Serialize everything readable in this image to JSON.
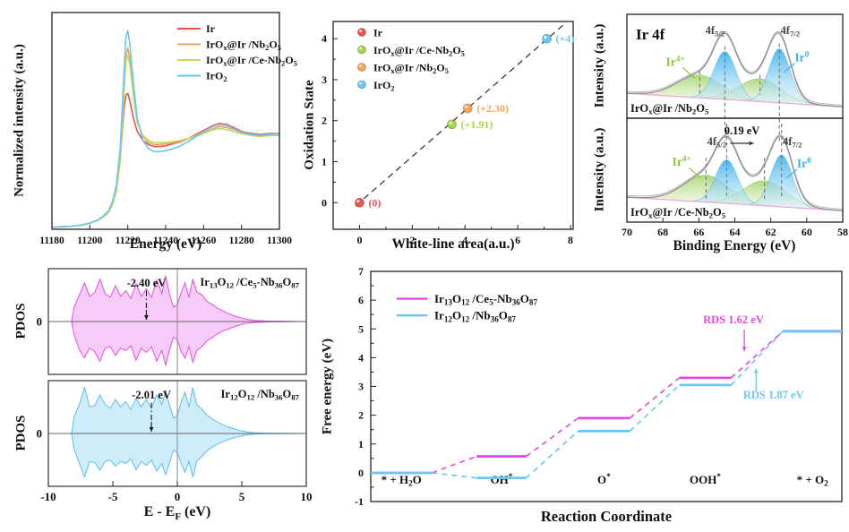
{
  "figure": {
    "background": "#ffffff",
    "text_color": "#111111"
  },
  "chart_data": [
    {
      "id": "xanes",
      "type": "line",
      "xlabel": "Energy (eV)",
      "ylabel": "Normalized intensity (a.u.)",
      "xlim": [
        11180,
        11300
      ],
      "ylim": [
        0,
        2.15
      ],
      "xticks": [
        11180,
        11200,
        11220,
        11240,
        11260,
        11280,
        11300
      ],
      "legend_position": "top-right-inside",
      "x": [
        11180,
        11185,
        11190,
        11195,
        11200,
        11204,
        11207,
        11210,
        11212,
        11214,
        11216,
        11218,
        11219,
        11220,
        11221,
        11223,
        11225,
        11228,
        11231,
        11234,
        11237,
        11240,
        11244,
        11248,
        11252,
        11256,
        11260,
        11264,
        11268,
        11272,
        11276,
        11280,
        11285,
        11290,
        11295,
        11300
      ],
      "series": [
        {
          "name": "Ir",
          "label": "Ir",
          "color": "#F0524E",
          "y": [
            0.02,
            0.025,
            0.03,
            0.04,
            0.06,
            0.09,
            0.12,
            0.18,
            0.26,
            0.4,
            0.7,
            1.2,
            1.33,
            1.35,
            1.28,
            1.1,
            0.97,
            0.88,
            0.84,
            0.82,
            0.82,
            0.83,
            0.85,
            0.87,
            0.9,
            0.94,
            0.98,
            1.02,
            1.05,
            1.04,
            1.01,
            0.97,
            0.95,
            0.94,
            0.95,
            0.95
          ]
        },
        {
          "name": "IrOx@Ir/Nb2O5",
          "label": "IrO<sub>x</sub>@Ir /Nb<sub>2</sub>O<sub>5</sub>",
          "color": "#F7A458",
          "y": [
            0.02,
            0.025,
            0.03,
            0.04,
            0.06,
            0.09,
            0.12,
            0.17,
            0.25,
            0.38,
            0.68,
            1.4,
            1.72,
            1.8,
            1.7,
            1.35,
            1.08,
            0.92,
            0.86,
            0.84,
            0.84,
            0.85,
            0.86,
            0.88,
            0.9,
            0.93,
            0.96,
            0.99,
            1.02,
            1.01,
            0.99,
            0.96,
            0.94,
            0.93,
            0.94,
            0.94
          ]
        },
        {
          "name": "IrOx@Ir/Ce-Nb2O5",
          "label": "IrO<sub>x</sub>@Ir /Ce-Nb<sub>2</sub>O<sub>5</sub>",
          "color": "#BCDB5F",
          "y": [
            0.02,
            0.025,
            0.03,
            0.04,
            0.06,
            0.09,
            0.12,
            0.17,
            0.25,
            0.38,
            0.66,
            1.35,
            1.66,
            1.73,
            1.64,
            1.32,
            1.06,
            0.93,
            0.88,
            0.86,
            0.86,
            0.86,
            0.87,
            0.88,
            0.9,
            0.92,
            0.95,
            0.98,
            1.0,
            0.99,
            0.97,
            0.95,
            0.93,
            0.92,
            0.93,
            0.93
          ]
        },
        {
          "name": "IrO2",
          "label": "IrO<sub>2</sub>",
          "color": "#6AC6F2",
          "y": [
            0.02,
            0.025,
            0.03,
            0.04,
            0.06,
            0.09,
            0.13,
            0.19,
            0.28,
            0.44,
            0.8,
            1.55,
            1.9,
            1.97,
            1.85,
            1.45,
            1.1,
            0.88,
            0.8,
            0.77,
            0.77,
            0.78,
            0.8,
            0.83,
            0.87,
            0.92,
            0.97,
            1.01,
            1.04,
            1.03,
            1.0,
            0.96,
            0.94,
            0.93,
            0.94,
            0.95
          ]
        }
      ]
    },
    {
      "id": "oxidation-state",
      "type": "scatter",
      "xlabel": "White-line area(a.u.)",
      "ylabel": "Oxidation State",
      "xlim": [
        -1.0,
        8.1
      ],
      "ylim": [
        -0.65,
        4.42
      ],
      "xticks": [
        0,
        2,
        4,
        6,
        8
      ],
      "yticks": [
        0,
        1,
        2,
        3,
        4
      ],
      "fit_line": {
        "x1": -0.15,
        "y1": -0.08,
        "x2": 7.75,
        "y2": 4.35,
        "style": "dashed",
        "color": "#3a3a3a"
      },
      "points": [
        {
          "label": "Ir",
          "x": 0,
          "y": 0,
          "annotation": "(0)",
          "color": "#F0524E"
        },
        {
          "label": "IrO<sub>x</sub>@Ir /Ce-Nb<sub>2</sub>O<sub>5</sub>",
          "x": 3.5,
          "y": 1.91,
          "annotation": "(+1.91)",
          "color": "#A5D74B"
        },
        {
          "label": "IrO<sub>x</sub>@Ir /Nb<sub>2</sub>O<sub>5</sub>",
          "x": 4.1,
          "y": 2.3,
          "annotation": "(+2.30)",
          "color": "#F7A458"
        },
        {
          "label": "IrO<sub>2</sub>",
          "x": 7.1,
          "y": 4.0,
          "annotation": "(+4)",
          "color": "#6AC6F2"
        }
      ]
    },
    {
      "id": "xps",
      "type": "area",
      "title": "Ir 4f",
      "xlabel": "Binding Energy (eV)",
      "ylabel": "Intensity (a.u.)",
      "xlim": [
        70,
        58
      ],
      "xticks": [
        70,
        68,
        66,
        64,
        62,
        60,
        58
      ],
      "colors": {
        "ir0_fill": "#45B5EE",
        "ir4_fill": "#9CCF5E",
        "envelope": "#8F8F8F",
        "baseline": "#F0A6DC",
        "ir0_text": "#3FB2EC",
        "ir4_text": "#8DC63F"
      },
      "panels": [
        {
          "sample": "IrO<sub>x</sub>@Ir /Nb<sub>2</sub>O<sub>5</sub>",
          "doublet_labels": [
            "4f<sub>5/2</sub>",
            "4f<sub>7/2</sub>"
          ],
          "ir0_label": "Ir<sup>0</sup>",
          "ir4_label": "Ir<sup>4+</sup>",
          "ir0_peaks": [
            {
              "center": 64.55,
              "sigma": 0.62,
              "amp": 0.46
            },
            {
              "center": 61.52,
              "sigma": 0.6,
              "amp": 0.52
            }
          ],
          "ir4_peaks": [
            {
              "center": 65.95,
              "sigma": 1.25,
              "amp": 0.22
            },
            {
              "center": 62.6,
              "sigma": 1.2,
              "amp": 0.22
            }
          ]
        },
        {
          "sample": "IrO<sub>x</sub>@Ir /Ce-Nb<sub>2</sub>O<sub>5</sub>",
          "doublet_labels": [
            "4f<sub>5/2</sub>",
            "4f<sub>7/2</sub>"
          ],
          "ir0_label": "Ir<sup>0</sup>",
          "ir4_label": "Ir<sup>4+</sup>",
          "ir0_peaks": [
            {
              "center": 64.45,
              "sigma": 0.62,
              "amp": 0.42
            },
            {
              "center": 61.4,
              "sigma": 0.6,
              "amp": 0.5
            }
          ],
          "ir4_peaks": [
            {
              "center": 65.6,
              "sigma": 1.25,
              "amp": 0.26
            },
            {
              "center": 62.35,
              "sigma": 1.2,
              "amp": 0.24
            }
          ],
          "shift_annotation": "0.19 eV"
        }
      ]
    },
    {
      "id": "pdos",
      "type": "area",
      "xlabel": "E - E<sub>F</sub> (eV)",
      "ylabel": "PDOS",
      "xlim": [
        -10,
        10
      ],
      "xticks": [
        -10,
        -5,
        0,
        5,
        10
      ],
      "ytick_zero": "0",
      "x": [
        -8.2,
        -8.0,
        -7.6,
        -7.2,
        -6.8,
        -6.4,
        -6.0,
        -5.6,
        -5.2,
        -4.8,
        -4.4,
        -4.0,
        -3.6,
        -3.2,
        -2.8,
        -2.4,
        -2.0,
        -1.6,
        -1.2,
        -0.9,
        -0.6,
        -0.3,
        0.0,
        0.3,
        0.6,
        0.9,
        1.2,
        1.5,
        1.9,
        2.3,
        2.7,
        3.1,
        3.5,
        4.0,
        4.5,
        5.0,
        5.5,
        6.0,
        7.0,
        8.5,
        10.0
      ],
      "panels": [
        {
          "label": "Ir<sub>13</sub>O<sub>12</sub> /Ce<sub>5</sub>-Nb<sub>36</sub>O<sub>87</sub>",
          "color": "#E24FE2",
          "fill": "#F0A0F0",
          "annotation": {
            "text": "-2.40 eV",
            "x": -2.4
          },
          "up": [
            0,
            0.3,
            0.55,
            0.8,
            0.52,
            0.6,
            0.88,
            0.58,
            0.5,
            0.74,
            0.52,
            0.64,
            0.48,
            0.78,
            0.52,
            0.68,
            0.5,
            0.86,
            0.58,
            0.95,
            0.55,
            0.3,
            0.35,
            0.6,
            0.8,
            0.5,
            0.88,
            0.62,
            0.55,
            0.42,
            0.35,
            0.28,
            0.22,
            0.16,
            0.11,
            0.07,
            0.04,
            0.02,
            0.01,
            0.005,
            0
          ],
          "down": [
            0,
            0.28,
            0.58,
            0.75,
            0.55,
            0.62,
            0.82,
            0.55,
            0.52,
            0.7,
            0.55,
            0.6,
            0.5,
            0.8,
            0.55,
            0.64,
            0.52,
            0.82,
            0.6,
            0.9,
            0.58,
            0.32,
            0.38,
            0.62,
            0.76,
            0.52,
            0.84,
            0.6,
            0.52,
            0.4,
            0.33,
            0.26,
            0.2,
            0.15,
            0.1,
            0.06,
            0.03,
            0.02,
            0.01,
            0.005,
            0
          ]
        },
        {
          "label": "Ir<sub>12</sub>O<sub>12</sub> /Nb<sub>36</sub>O<sub>87</sub>",
          "color": "#58BEF0",
          "fill": "#A8DCF5",
          "annotation": {
            "text": "-2.01 eV",
            "x": -2.01
          },
          "up": [
            0,
            0.35,
            0.6,
            0.95,
            0.55,
            0.58,
            0.8,
            0.6,
            0.52,
            0.7,
            0.55,
            0.66,
            0.5,
            0.72,
            0.55,
            0.7,
            0.52,
            0.8,
            0.6,
            0.88,
            0.58,
            0.32,
            0.38,
            0.65,
            0.85,
            0.55,
            0.95,
            0.6,
            0.5,
            0.38,
            0.3,
            0.24,
            0.18,
            0.13,
            0.09,
            0.05,
            0.03,
            0.015,
            0.008,
            0.004,
            0
          ],
          "down": [
            0,
            0.32,
            0.62,
            0.9,
            0.58,
            0.6,
            0.76,
            0.58,
            0.55,
            0.68,
            0.58,
            0.62,
            0.52,
            0.75,
            0.58,
            0.66,
            0.55,
            0.78,
            0.62,
            0.85,
            0.6,
            0.34,
            0.4,
            0.62,
            0.8,
            0.58,
            0.9,
            0.58,
            0.48,
            0.36,
            0.28,
            0.22,
            0.17,
            0.12,
            0.08,
            0.05,
            0.025,
            0.012,
            0.006,
            0.003,
            0
          ]
        }
      ]
    },
    {
      "id": "free-energy",
      "type": "line",
      "xlabel": "Reaction Coordinate",
      "ylabel": "Free energy (eV)",
      "ylim": [
        -1,
        7
      ],
      "yticks": [
        -1,
        0,
        1,
        2,
        3,
        4,
        5,
        6,
        7
      ],
      "xrange": [
        0,
        10
      ],
      "step_labels": [
        "* + H<sub>2</sub>O",
        "OH<sup>*</sup>",
        "O<sup>*</sup>",
        "OOH<sup>*</sup>",
        "* + O<sub>2</sub>"
      ],
      "step_positions": [
        [
          0,
          1.3
        ],
        [
          2.25,
          3.3
        ],
        [
          4.4,
          5.5
        ],
        [
          6.55,
          7.65
        ],
        [
          8.75,
          10
        ]
      ],
      "series": [
        {
          "label": "Ir<sub>13</sub>O<sub>12</sub> /Ce<sub>5</sub>-Nb<sub>36</sub>O<sub>87</sub>",
          "color": "#E44AE1",
          "values": [
            0,
            0.57,
            1.9,
            3.3,
            4.92
          ],
          "rds": {
            "text": "RDS 1.62 eV",
            "text_x": 7.7,
            "text_y": 5.2,
            "arrow_x": 7.93,
            "arrow_y1": 4.98,
            "arrow_y2": 4.22
          }
        },
        {
          "label": "Ir<sub>12</sub>O<sub>12</sub> /Nb<sub>36</sub>O<sub>87</sub>",
          "color": "#6AC6F2",
          "values": [
            0,
            -0.18,
            1.45,
            3.05,
            4.92
          ],
          "rds": {
            "text": "RDS 1.87 eV",
            "text_x": 8.55,
            "text_y": 2.58,
            "arrow_x": 8.18,
            "arrow_y1": 2.85,
            "arrow_y2": 3.62
          }
        }
      ]
    }
  ]
}
